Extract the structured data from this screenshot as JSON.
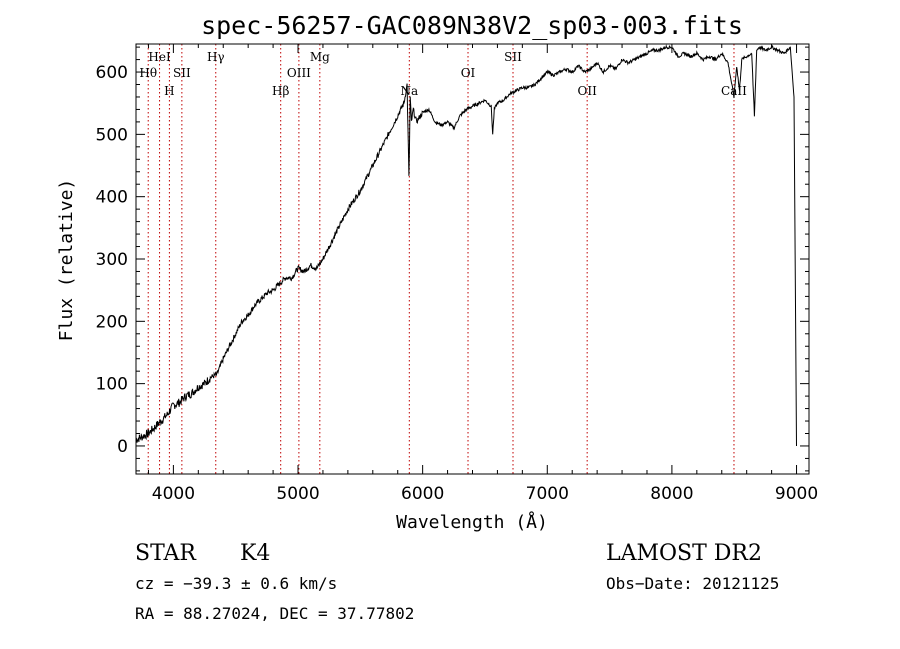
{
  "chart_data": {
    "type": "line",
    "title": "spec-56257-GAC089N38V2_sp03-003.fits",
    "xlabel": "Wavelength (Å)",
    "ylabel": "Flux (relative)",
    "xlim": [
      3700,
      9100
    ],
    "ylim": [
      -45,
      645
    ],
    "x_ticks": [
      {
        "label": "4000",
        "value": 4000
      },
      {
        "label": "5000",
        "value": 5000
      },
      {
        "label": "6000",
        "value": 6000
      },
      {
        "label": "7000",
        "value": 7000
      },
      {
        "label": "8000",
        "value": 8000
      },
      {
        "label": "9000",
        "value": 9000
      }
    ],
    "y_ticks": [
      {
        "label": "0",
        "value": 0
      },
      {
        "label": "100",
        "value": 100
      },
      {
        "label": "200",
        "value": 200
      },
      {
        "label": "300",
        "value": 300
      },
      {
        "label": "400",
        "value": 400
      },
      {
        "label": "500",
        "value": 500
      },
      {
        "label": "600",
        "value": 600
      }
    ],
    "series": [
      {
        "x": [
          3700,
          3750,
          3800,
          3850,
          3900,
          3950,
          4000,
          4050,
          4100,
          4150,
          4200,
          4250,
          4300,
          4350,
          4400,
          4450,
          4500,
          4550,
          4600,
          4650,
          4700,
          4750,
          4800,
          4850,
          4900,
          4950,
          5000,
          5050,
          5100,
          5150,
          5200,
          5250,
          5300,
          5350,
          5400,
          5450,
          5500,
          5550,
          5600,
          5650,
          5700,
          5750,
          5800,
          5850,
          5875,
          5890,
          5900,
          5910,
          5925,
          5950,
          6000,
          6050,
          6100,
          6150,
          6200,
          6250,
          6300,
          6350,
          6400,
          6450,
          6500,
          6550,
          6562,
          6575,
          6600,
          6650,
          6700,
          6750,
          6800,
          6850,
          6900,
          6950,
          7000,
          7050,
          7100,
          7150,
          7200,
          7250,
          7300,
          7350,
          7400,
          7450,
          7500,
          7550,
          7600,
          7650,
          7700,
          7750,
          7800,
          7850,
          7900,
          7950,
          8000,
          8050,
          8100,
          8150,
          8200,
          8250,
          8300,
          8350,
          8400,
          8450,
          8498,
          8520,
          8542,
          8560,
          8600,
          8640,
          8662,
          8680,
          8700,
          8750,
          8800,
          8850,
          8900,
          8950,
          8980,
          9000
        ],
        "y": [
          10,
          15,
          20,
          30,
          40,
          50,
          65,
          70,
          80,
          85,
          95,
          100,
          110,
          115,
          140,
          160,
          180,
          200,
          210,
          225,
          235,
          245,
          250,
          260,
          270,
          270,
          285,
          280,
          290,
          285,
          300,
          320,
          340,
          360,
          380,
          395,
          410,
          430,
          450,
          470,
          490,
          510,
          530,
          550,
          580,
          430,
          560,
          520,
          540,
          520,
          535,
          540,
          520,
          515,
          520,
          510,
          530,
          540,
          545,
          550,
          555,
          545,
          500,
          540,
          550,
          555,
          565,
          570,
          575,
          575,
          580,
          590,
          600,
          595,
          600,
          605,
          600,
          610,
          600,
          605,
          615,
          600,
          610,
          605,
          620,
          615,
          620,
          625,
          630,
          635,
          635,
          640,
          640,
          625,
          630,
          625,
          630,
          620,
          625,
          620,
          630,
          615,
          560,
          610,
          570,
          620,
          625,
          630,
          530,
          635,
          640,
          635,
          640,
          635,
          630,
          640,
          560,
          0
        ]
      }
    ],
    "spectral_lines": [
      {
        "label": "Hθ",
        "x": 3798,
        "row": 2
      },
      {
        "label": "HeI",
        "x": 3889,
        "row": 1
      },
      {
        "label": "H",
        "x": 3968,
        "row": 3
      },
      {
        "label": "SII",
        "x": 4068,
        "row": 2
      },
      {
        "label": "Hγ",
        "x": 4340,
        "row": 1
      },
      {
        "label": "Hβ",
        "x": 4861,
        "row": 3
      },
      {
        "label": "OIII",
        "x": 5007,
        "row": 2
      },
      {
        "label": "Mg",
        "x": 5175,
        "row": 1
      },
      {
        "label": "Na",
        "x": 5893,
        "row": 3
      },
      {
        "label": "OI",
        "x": 6364,
        "row": 2
      },
      {
        "label": "SII",
        "x": 6725,
        "row": 1
      },
      {
        "label": "OII",
        "x": 7320,
        "row": 3
      },
      {
        "label": "CaII",
        "x": 8498,
        "row": 3
      }
    ]
  },
  "info": {
    "object_class": "STAR",
    "subclass": "K4",
    "survey": "LAMOST DR2",
    "cz": "cz = −39.3 ± 0.6 km/s",
    "obs_date": "Obs−Date: 20121125",
    "radec": "RA =  88.27024, DEC =  37.77802"
  },
  "colors": {
    "spectrum": "#000000",
    "line_markers": "#c00000",
    "axes": "#000000",
    "background": "#ffffff"
  }
}
